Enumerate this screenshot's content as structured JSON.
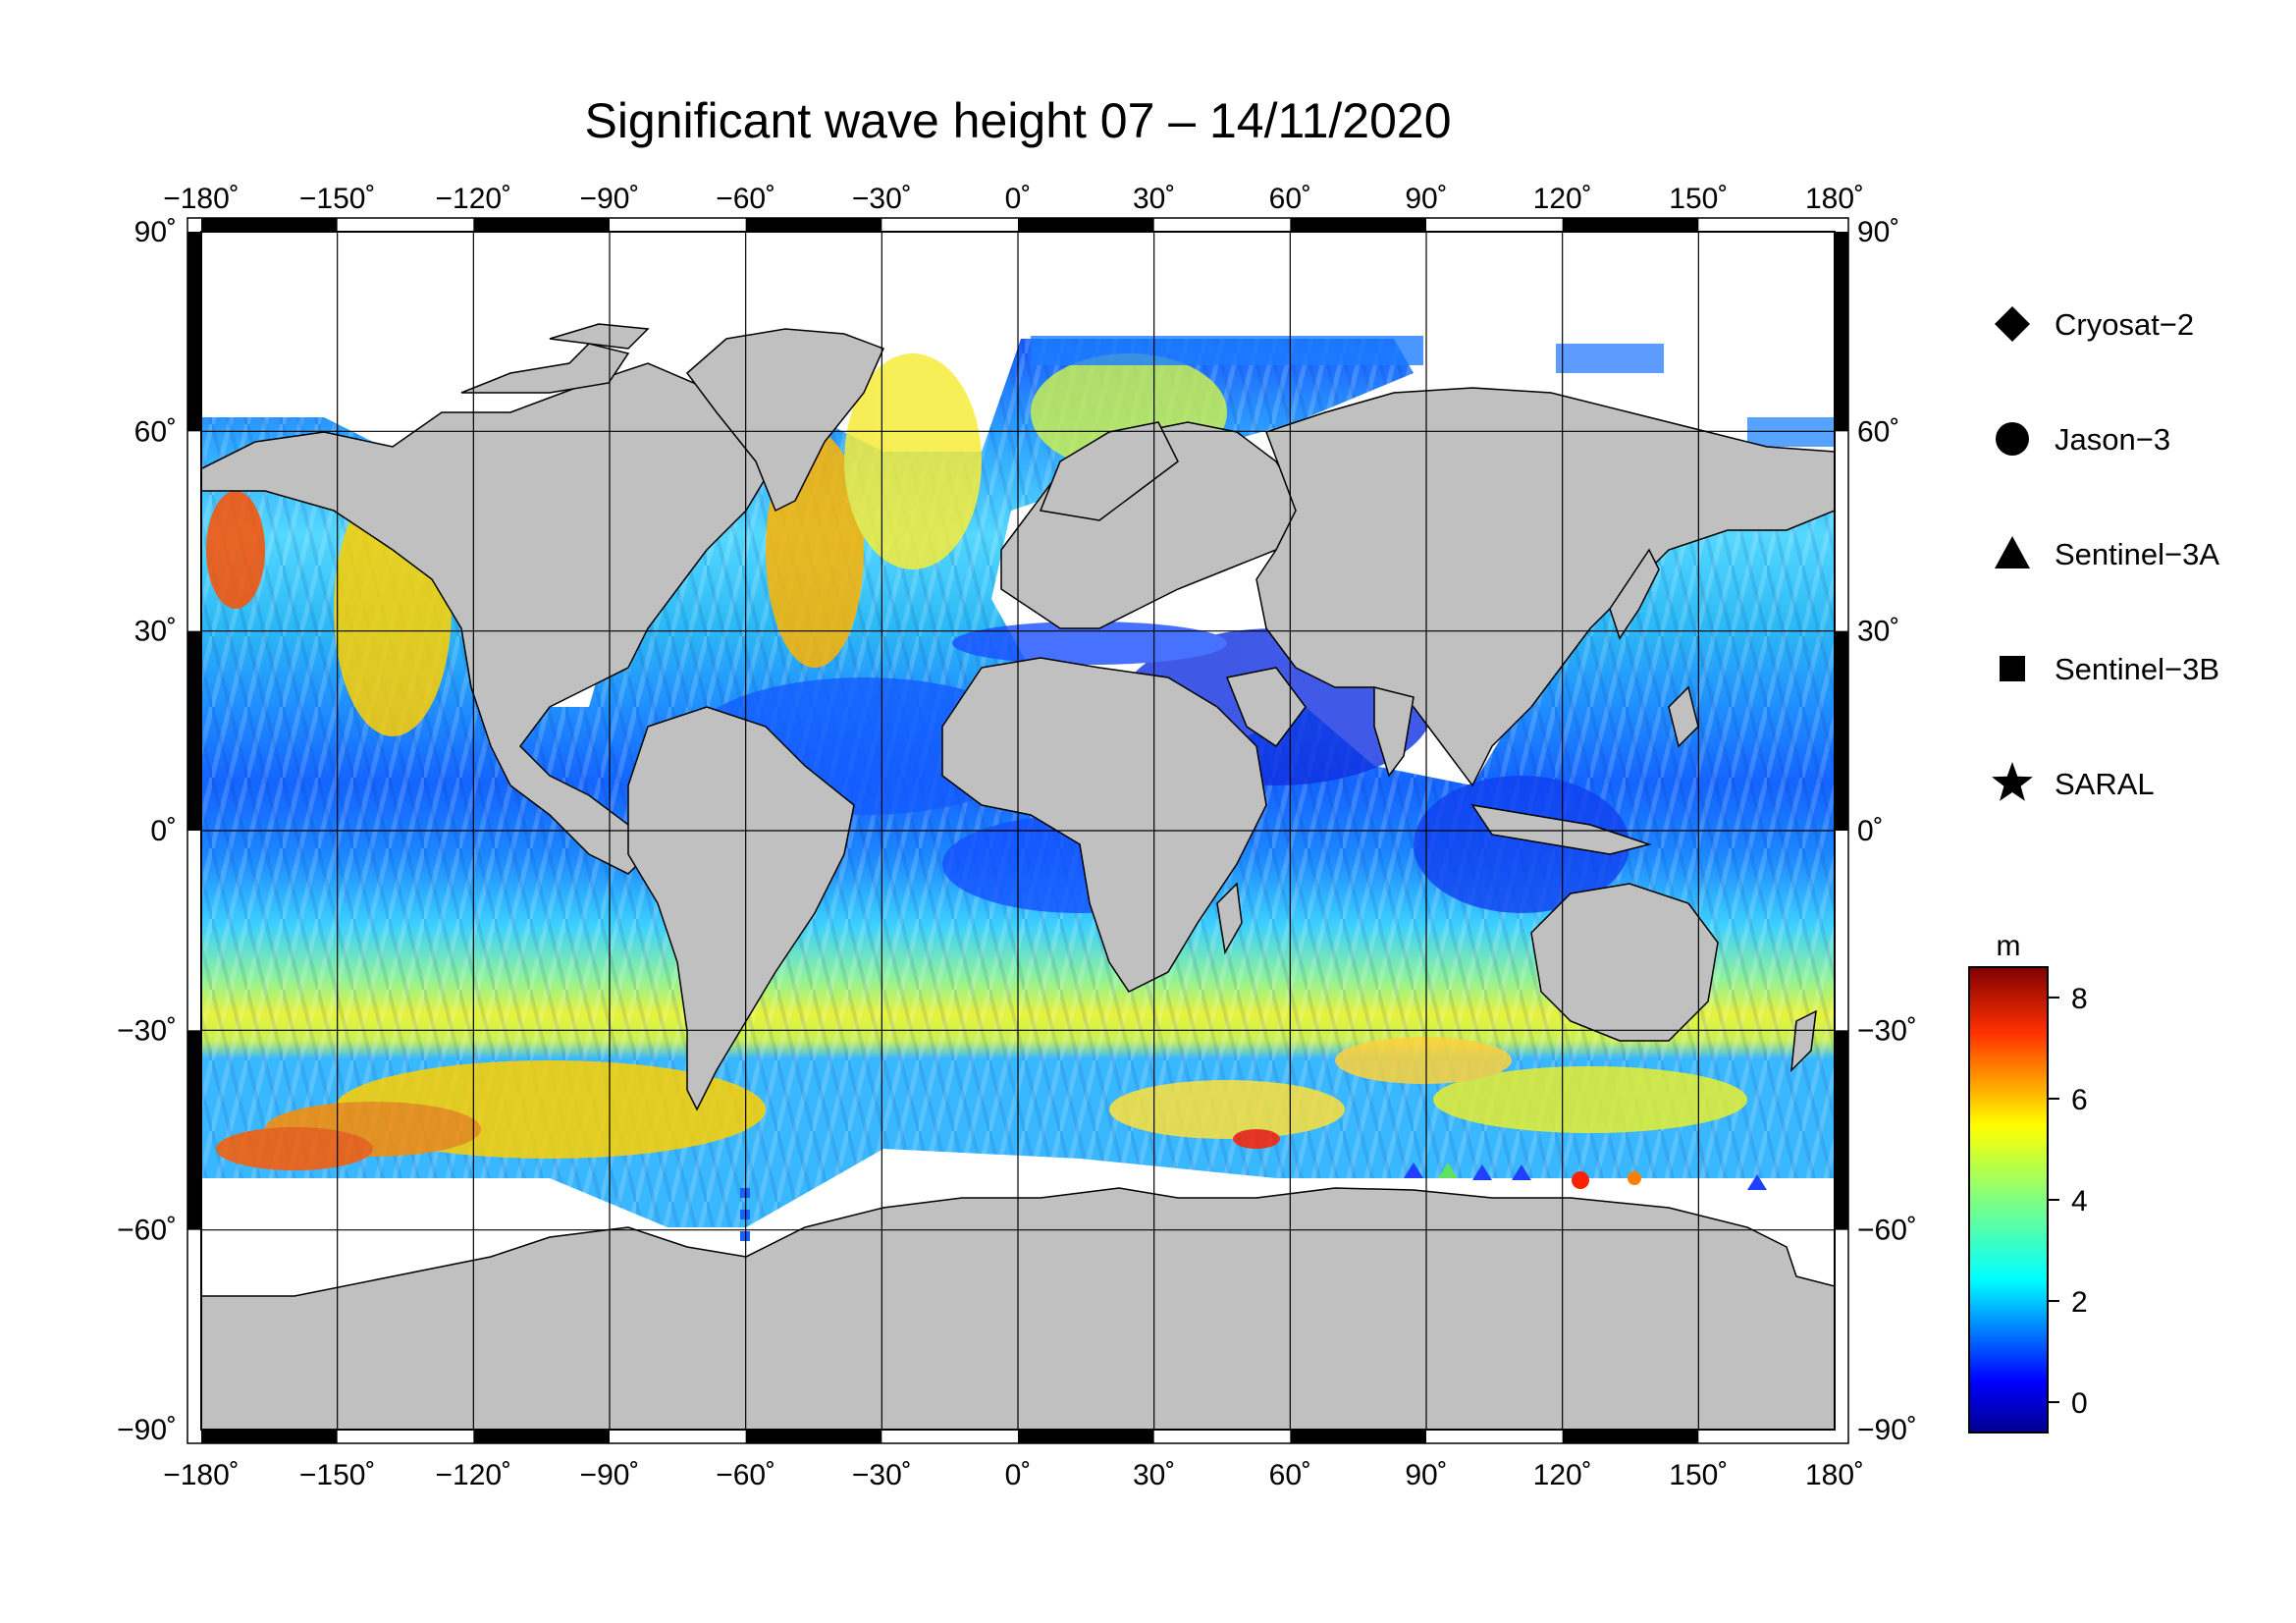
{
  "title": "Significant wave height 07 – 14/11/2020",
  "map": {
    "projection": "equirectangular",
    "lon_range": [
      -180,
      180
    ],
    "lat_range": [
      -90,
      90
    ],
    "grid_step_lon": 30,
    "grid_step_lat": 30,
    "grid": true,
    "land_color": "#c0c0c0",
    "ice_color": "#ffffff",
    "frame_color": "#000000"
  },
  "axes": {
    "lon_ticks": [
      "−180˚",
      "−150˚",
      "−120˚",
      "−90˚",
      "−60˚",
      "−30˚",
      "0˚",
      "30˚",
      "60˚",
      "90˚",
      "120˚",
      "150˚",
      "180˚"
    ],
    "lat_ticks_left": [
      "90˚",
      "60˚",
      "30˚",
      "0˚",
      "−30˚",
      "−60˚",
      "−90˚"
    ],
    "lat_ticks_right": [
      "90˚",
      "60˚",
      "30˚",
      "0˚",
      "−30˚",
      "−60˚",
      "−90˚"
    ]
  },
  "legend": {
    "placement": "right",
    "items": [
      {
        "label": "Cryosat−2",
        "marker": "diamond"
      },
      {
        "label": "Jason−3",
        "marker": "circle"
      },
      {
        "label": "Sentinel−3A",
        "marker": "triangle"
      },
      {
        "label": "Sentinel−3B",
        "marker": "square"
      },
      {
        "label": "SARAL",
        "marker": "star"
      }
    ]
  },
  "colorbar": {
    "unit": "m",
    "range": [
      -0.6,
      8.6
    ],
    "ticks": [
      "0",
      "2",
      "4",
      "6",
      "8"
    ],
    "colormap": "jet",
    "colors": [
      "#00008f",
      "#0000ff",
      "#0080ff",
      "#00ffff",
      "#80ff80",
      "#ffff00",
      "#ff8000",
      "#ff0000",
      "#800000"
    ]
  }
}
